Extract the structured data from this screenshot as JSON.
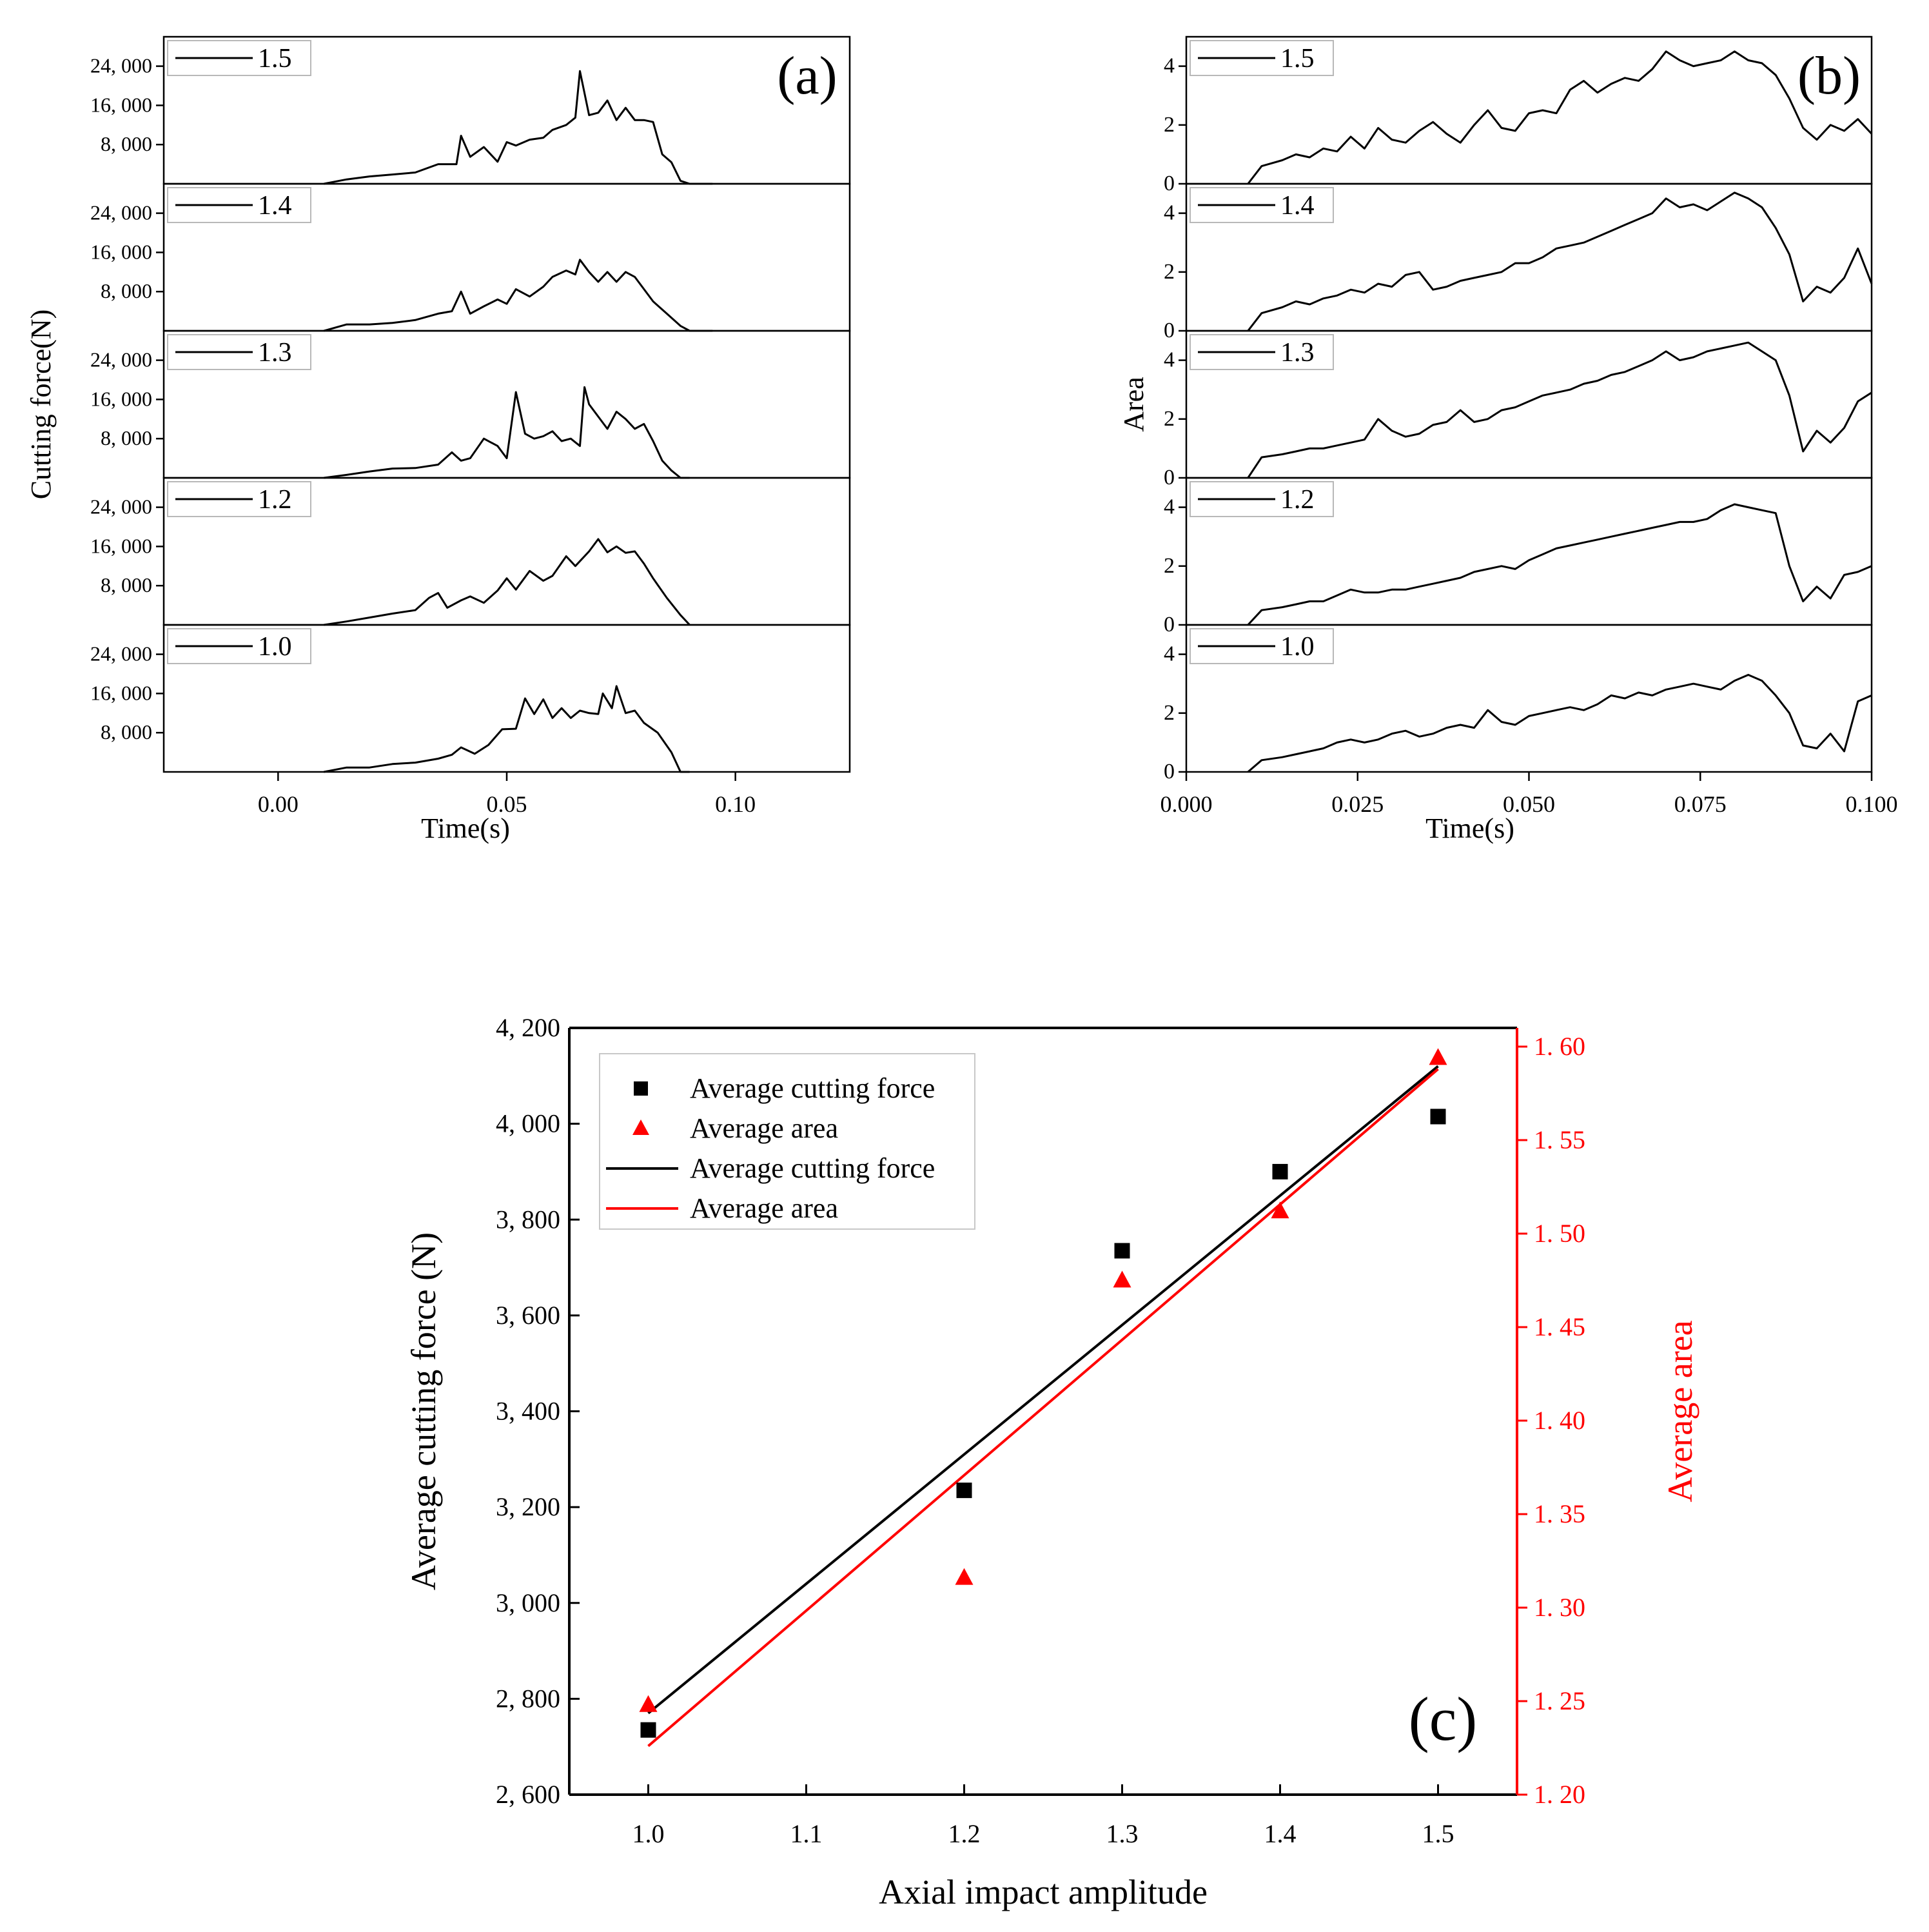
{
  "chart_data": [
    {
      "id": "a",
      "type": "line",
      "panel_label": "(a)",
      "xlabel": "Time(s)",
      "ylabel": "Cutting force(N)",
      "xlim": [
        -0.025,
        0.125
      ],
      "xticks": [
        0.0,
        0.05,
        0.1
      ],
      "xtick_labels": [
        "0.00",
        "0.05",
        "0.10"
      ],
      "ylim": [
        0,
        30000
      ],
      "yticks": [
        8000,
        16000,
        24000
      ],
      "ytick_labels": [
        "8, 000",
        "16, 000",
        "24, 000"
      ],
      "subplots": [
        {
          "label": "1.5",
          "x": [
            0.01,
            0.015,
            0.02,
            0.025,
            0.03,
            0.035,
            0.039,
            0.04,
            0.042,
            0.045,
            0.048,
            0.05,
            0.052,
            0.055,
            0.058,
            0.06,
            0.063,
            0.065,
            0.066,
            0.068,
            0.07,
            0.072,
            0.074,
            0.076,
            0.078,
            0.08,
            0.082,
            0.084,
            0.086,
            0.088,
            0.09,
            0.095
          ],
          "y": [
            0,
            900,
            1500,
            1900,
            2300,
            4000,
            4000,
            9800,
            5500,
            7500,
            4500,
            8500,
            7800,
            9000,
            9400,
            11000,
            12000,
            13500,
            23000,
            14000,
            14500,
            17000,
            13000,
            15500,
            13000,
            13000,
            12600,
            6000,
            4400,
            600,
            0,
            0
          ]
        },
        {
          "label": "1.4",
          "x": [
            0.01,
            0.015,
            0.02,
            0.025,
            0.03,
            0.035,
            0.038,
            0.04,
            0.042,
            0.045,
            0.048,
            0.05,
            0.052,
            0.055,
            0.058,
            0.06,
            0.063,
            0.065,
            0.066,
            0.068,
            0.07,
            0.072,
            0.074,
            0.076,
            0.078,
            0.08,
            0.082,
            0.085,
            0.088,
            0.09,
            0.095
          ],
          "y": [
            0,
            1300,
            1300,
            1600,
            2200,
            3500,
            4000,
            8000,
            3500,
            5000,
            6400,
            5500,
            8500,
            7000,
            9000,
            11000,
            12300,
            11500,
            14500,
            12000,
            10000,
            12000,
            10000,
            12000,
            11000,
            8500,
            6000,
            3500,
            1000,
            0,
            0
          ]
        },
        {
          "label": "1.3",
          "x": [
            0.01,
            0.015,
            0.02,
            0.025,
            0.03,
            0.035,
            0.038,
            0.04,
            0.042,
            0.045,
            0.048,
            0.05,
            0.052,
            0.054,
            0.056,
            0.058,
            0.06,
            0.062,
            0.064,
            0.066,
            0.067,
            0.068,
            0.07,
            0.072,
            0.074,
            0.076,
            0.078,
            0.08,
            0.082,
            0.084,
            0.086,
            0.088,
            0.09
          ],
          "y": [
            0,
            600,
            1300,
            1900,
            2000,
            2700,
            5200,
            3500,
            4000,
            8000,
            6500,
            4000,
            17500,
            9000,
            8000,
            8500,
            9500,
            7500,
            8000,
            6500,
            18500,
            15000,
            12500,
            10000,
            13500,
            12000,
            10000,
            11000,
            7500,
            3500,
            1500,
            0,
            0
          ]
        },
        {
          "label": "1.2",
          "x": [
            0.01,
            0.015,
            0.02,
            0.025,
            0.03,
            0.033,
            0.035,
            0.037,
            0.04,
            0.042,
            0.045,
            0.048,
            0.05,
            0.052,
            0.055,
            0.058,
            0.06,
            0.063,
            0.065,
            0.068,
            0.07,
            0.072,
            0.074,
            0.076,
            0.078,
            0.08,
            0.082,
            0.085,
            0.088,
            0.09
          ],
          "y": [
            0,
            700,
            1500,
            2300,
            3000,
            5500,
            6500,
            3500,
            5000,
            5800,
            4500,
            7000,
            9500,
            7200,
            11000,
            9000,
            10000,
            14000,
            12000,
            15000,
            17500,
            14800,
            16000,
            14700,
            15000,
            12500,
            9500,
            5500,
            2000,
            0
          ]
        },
        {
          "label": "1.0",
          "x": [
            0.01,
            0.015,
            0.02,
            0.025,
            0.03,
            0.035,
            0.038,
            0.04,
            0.043,
            0.046,
            0.049,
            0.052,
            0.054,
            0.056,
            0.058,
            0.06,
            0.062,
            0.064,
            0.066,
            0.068,
            0.07,
            0.071,
            0.073,
            0.074,
            0.076,
            0.078,
            0.08,
            0.083,
            0.086,
            0.088,
            0.09
          ],
          "y": [
            0,
            900,
            900,
            1600,
            1900,
            2700,
            3500,
            5000,
            3700,
            5500,
            8700,
            8800,
            15000,
            11800,
            14800,
            11000,
            13000,
            11000,
            12500,
            12000,
            11800,
            16000,
            13000,
            17500,
            12000,
            12500,
            10000,
            8000,
            4000,
            0,
            0
          ]
        }
      ]
    },
    {
      "id": "b",
      "type": "line",
      "panel_label": "(b)",
      "xlabel": "Time(s)",
      "ylabel": "Area",
      "xlim": [
        0.0,
        0.1
      ],
      "xticks": [
        0.0,
        0.025,
        0.05,
        0.075,
        0.1
      ],
      "xtick_labels": [
        "0.000",
        "0.025",
        "0.050",
        "0.075",
        "0.100"
      ],
      "ylim": [
        0,
        5
      ],
      "yticks": [
        0,
        2,
        4
      ],
      "ytick_labels": [
        "0",
        "2",
        "4"
      ],
      "subplots": [
        {
          "label": "1.5",
          "x": [
            0.009,
            0.011,
            0.014,
            0.016,
            0.018,
            0.02,
            0.022,
            0.024,
            0.026,
            0.028,
            0.03,
            0.032,
            0.034,
            0.036,
            0.038,
            0.04,
            0.042,
            0.044,
            0.046,
            0.048,
            0.05,
            0.052,
            0.054,
            0.056,
            0.058,
            0.06,
            0.062,
            0.064,
            0.066,
            0.068,
            0.07,
            0.072,
            0.074,
            0.076,
            0.078,
            0.08,
            0.082,
            0.084,
            0.086,
            0.088,
            0.09,
            0.092,
            0.094,
            0.096,
            0.098,
            0.1
          ],
          "y": [
            0,
            0.6,
            0.8,
            1.0,
            0.9,
            1.2,
            1.1,
            1.6,
            1.2,
            1.9,
            1.5,
            1.4,
            1.8,
            2.1,
            1.7,
            1.4,
            2.0,
            2.5,
            1.9,
            1.8,
            2.4,
            2.5,
            2.4,
            3.2,
            3.5,
            3.1,
            3.4,
            3.6,
            3.5,
            3.9,
            4.5,
            4.2,
            4.0,
            4.1,
            4.2,
            4.5,
            4.2,
            4.1,
            3.7,
            2.9,
            1.9,
            1.5,
            2.0,
            1.8,
            2.2,
            1.7
          ]
        },
        {
          "label": "1.4",
          "x": [
            0.009,
            0.011,
            0.014,
            0.016,
            0.018,
            0.02,
            0.022,
            0.024,
            0.026,
            0.028,
            0.03,
            0.032,
            0.034,
            0.036,
            0.038,
            0.04,
            0.042,
            0.044,
            0.046,
            0.048,
            0.05,
            0.052,
            0.054,
            0.056,
            0.058,
            0.06,
            0.062,
            0.064,
            0.066,
            0.068,
            0.07,
            0.072,
            0.074,
            0.076,
            0.078,
            0.08,
            0.082,
            0.084,
            0.086,
            0.088,
            0.09,
            0.092,
            0.094,
            0.096,
            0.098,
            0.1
          ],
          "y": [
            0,
            0.6,
            0.8,
            1.0,
            0.9,
            1.1,
            1.2,
            1.4,
            1.3,
            1.6,
            1.5,
            1.9,
            2.0,
            1.4,
            1.5,
            1.7,
            1.8,
            1.9,
            2.0,
            2.3,
            2.3,
            2.5,
            2.8,
            2.9,
            3.0,
            3.2,
            3.4,
            3.6,
            3.8,
            4.0,
            4.5,
            4.2,
            4.3,
            4.1,
            4.4,
            4.7,
            4.5,
            4.2,
            3.5,
            2.6,
            1.0,
            1.5,
            1.3,
            1.8,
            2.8,
            1.6
          ]
        },
        {
          "label": "1.3",
          "x": [
            0.009,
            0.011,
            0.014,
            0.016,
            0.018,
            0.02,
            0.022,
            0.024,
            0.026,
            0.028,
            0.03,
            0.032,
            0.034,
            0.036,
            0.038,
            0.04,
            0.042,
            0.044,
            0.046,
            0.048,
            0.05,
            0.052,
            0.054,
            0.056,
            0.058,
            0.06,
            0.062,
            0.064,
            0.066,
            0.068,
            0.07,
            0.072,
            0.074,
            0.076,
            0.078,
            0.08,
            0.082,
            0.084,
            0.086,
            0.088,
            0.09,
            0.092,
            0.094,
            0.096,
            0.098,
            0.1
          ],
          "y": [
            0,
            0.7,
            0.8,
            0.9,
            1.0,
            1.0,
            1.1,
            1.2,
            1.3,
            2.0,
            1.6,
            1.4,
            1.5,
            1.8,
            1.9,
            2.3,
            1.9,
            2.0,
            2.3,
            2.4,
            2.6,
            2.8,
            2.9,
            3.0,
            3.2,
            3.3,
            3.5,
            3.6,
            3.8,
            4.0,
            4.3,
            4.0,
            4.1,
            4.3,
            4.4,
            4.5,
            4.6,
            4.3,
            4.0,
            2.8,
            0.9,
            1.6,
            1.2,
            1.7,
            2.6,
            2.9
          ]
        },
        {
          "label": "1.2",
          "x": [
            0.009,
            0.011,
            0.014,
            0.016,
            0.018,
            0.02,
            0.022,
            0.024,
            0.026,
            0.028,
            0.03,
            0.032,
            0.034,
            0.036,
            0.038,
            0.04,
            0.042,
            0.044,
            0.046,
            0.048,
            0.05,
            0.052,
            0.054,
            0.056,
            0.058,
            0.06,
            0.062,
            0.064,
            0.066,
            0.068,
            0.07,
            0.072,
            0.074,
            0.076,
            0.078,
            0.08,
            0.082,
            0.084,
            0.086,
            0.088,
            0.09,
            0.092,
            0.094,
            0.096,
            0.098,
            0.1
          ],
          "y": [
            0,
            0.5,
            0.6,
            0.7,
            0.8,
            0.8,
            1.0,
            1.2,
            1.1,
            1.1,
            1.2,
            1.2,
            1.3,
            1.4,
            1.5,
            1.6,
            1.8,
            1.9,
            2.0,
            1.9,
            2.2,
            2.4,
            2.6,
            2.7,
            2.8,
            2.9,
            3.0,
            3.1,
            3.2,
            3.3,
            3.4,
            3.5,
            3.5,
            3.6,
            3.9,
            4.1,
            4.0,
            3.9,
            3.8,
            2.0,
            0.8,
            1.3,
            0.9,
            1.7,
            1.8,
            2.0
          ]
        },
        {
          "label": "1.0",
          "x": [
            0.009,
            0.011,
            0.014,
            0.016,
            0.018,
            0.02,
            0.022,
            0.024,
            0.026,
            0.028,
            0.03,
            0.032,
            0.034,
            0.036,
            0.038,
            0.04,
            0.042,
            0.044,
            0.046,
            0.048,
            0.05,
            0.052,
            0.054,
            0.056,
            0.058,
            0.06,
            0.062,
            0.064,
            0.066,
            0.068,
            0.07,
            0.072,
            0.074,
            0.076,
            0.078,
            0.08,
            0.082,
            0.084,
            0.086,
            0.088,
            0.09,
            0.092,
            0.094,
            0.096,
            0.098,
            0.1
          ],
          "y": [
            0,
            0.4,
            0.5,
            0.6,
            0.7,
            0.8,
            1.0,
            1.1,
            1.0,
            1.1,
            1.3,
            1.4,
            1.2,
            1.3,
            1.5,
            1.6,
            1.5,
            2.1,
            1.7,
            1.6,
            1.9,
            2.0,
            2.1,
            2.2,
            2.1,
            2.3,
            2.6,
            2.5,
            2.7,
            2.6,
            2.8,
            2.9,
            3.0,
            2.9,
            2.8,
            3.1,
            3.3,
            3.1,
            2.6,
            2.0,
            0.9,
            0.8,
            1.3,
            0.7,
            2.4,
            2.6
          ]
        }
      ]
    },
    {
      "id": "c",
      "type": "scatter",
      "panel_label": "(c)",
      "xlabel": "Axial impact amplitude",
      "ylabel": "Average cutting force (N)",
      "ylabel_right": "Average area",
      "xlim": [
        0.95,
        1.55
      ],
      "xticks": [
        1.0,
        1.1,
        1.2,
        1.3,
        1.4,
        1.5
      ],
      "xtick_labels": [
        "1.0",
        "1.1",
        "1.2",
        "1.3",
        "1.4",
        "1.5"
      ],
      "ylim": [
        2600,
        4200
      ],
      "yticks": [
        2600,
        2800,
        3000,
        3200,
        3400,
        3600,
        3800,
        4000,
        4200
      ],
      "ytick_labels": [
        "2, 600",
        "2, 800",
        "3, 000",
        "3, 200",
        "3, 400",
        "3, 600",
        "3, 800",
        "4, 000",
        "4, 200"
      ],
      "ylim_right": [
        1.2,
        1.61
      ],
      "yticks_right": [
        1.2,
        1.25,
        1.3,
        1.35,
        1.4,
        1.45,
        1.5,
        1.55,
        1.6
      ],
      "ytick_labels_right": [
        "1. 20",
        "1. 25",
        "1. 30",
        "1. 35",
        "1. 40",
        "1. 45",
        "1. 50",
        "1. 55",
        "1. 60"
      ],
      "colors": {
        "force": "#000000",
        "area": "#ff0000"
      },
      "series": [
        {
          "name": "Average cutting force",
          "kind": "points",
          "axis": "left",
          "x": [
            1.0,
            1.2,
            1.3,
            1.4,
            1.5
          ],
          "values": [
            2735,
            3235,
            3735,
            3900,
            4015
          ]
        },
        {
          "name": "Average area",
          "kind": "points",
          "axis": "right",
          "x": [
            1.0,
            1.2,
            1.3,
            1.4,
            1.5
          ],
          "values": [
            1.248,
            1.316,
            1.475,
            1.512,
            1.594
          ]
        },
        {
          "name": "Average cutting force",
          "kind": "fit",
          "axis": "left",
          "x": [
            1.0,
            1.5
          ],
          "values": [
            2770,
            4120
          ]
        },
        {
          "name": "Average area",
          "kind": "fit",
          "axis": "right",
          "x": [
            1.0,
            1.5
          ],
          "values": [
            1.226,
            1.588
          ]
        }
      ],
      "legend": [
        "Average cutting force",
        "Average area",
        "Average cutting force",
        "Average area"
      ]
    }
  ]
}
